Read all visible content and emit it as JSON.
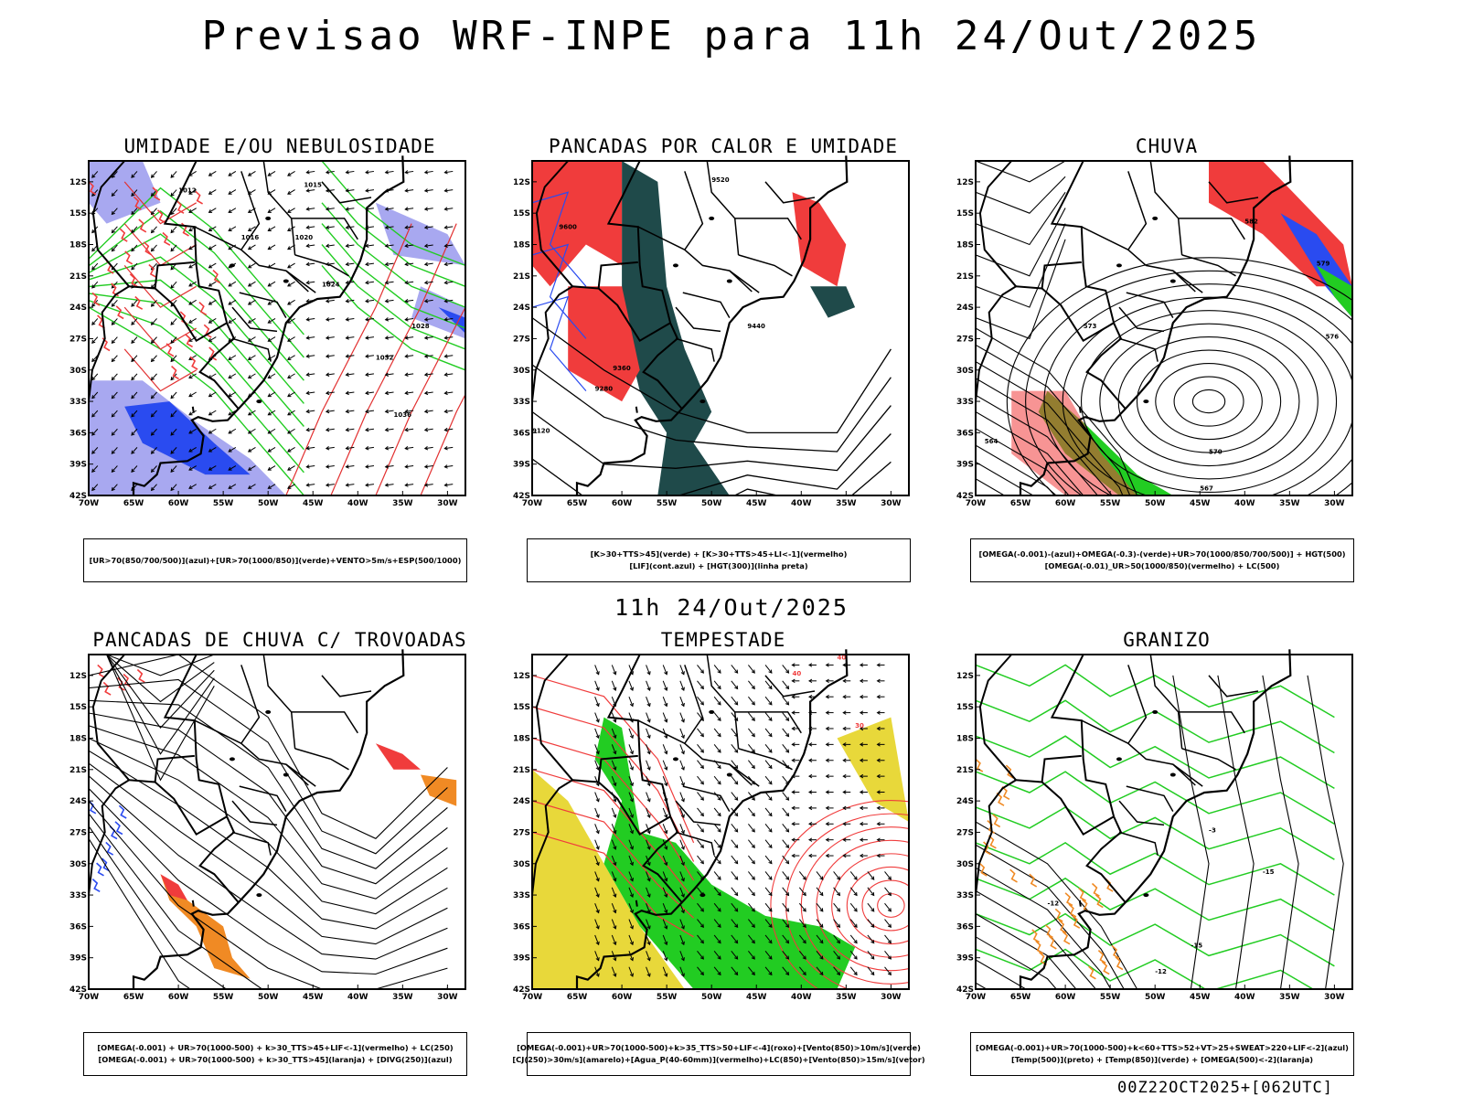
{
  "page": {
    "title": "Previsao WRF-INPE  para 11h 24/Out/2025",
    "middle_title": "11h 24/Out/2025",
    "footer": "00Z22OCT2025+[062UTC]"
  },
  "axes": {
    "lat_labels": [
      "12S",
      "15S",
      "18S",
      "21S",
      "24S",
      "27S",
      "30S",
      "33S",
      "36S",
      "39S",
      "42S"
    ],
    "lon_labels": [
      "70W",
      "65W",
      "60W",
      "55W",
      "50W",
      "45W",
      "40W",
      "35W",
      "30W"
    ]
  },
  "colors": {
    "red": "#f03c3c",
    "green": "#22cc22",
    "blue": "#2a4bf0",
    "lavender": "#a8a8f0",
    "dark_teal": "#1f4a4a",
    "orange": "#f08a24",
    "yellow": "#e8d83a",
    "purple": "#a020f0"
  },
  "panels": [
    {
      "id": "umidade",
      "title": "UMIDADE E/OU NEBULOSIDADE",
      "legend": [
        "[UR>70(850/700/500)](azul)+[UR>70(1000/850)](verde)+VENTO>5m/s+ESP(500/1000)"
      ],
      "contour_labels": [
        "1012",
        "1015",
        "1016",
        "1020",
        "1024",
        "1028",
        "1032",
        "1036"
      ]
    },
    {
      "id": "pancadas-calor",
      "title": "PANCADAS POR CALOR E UMIDADE",
      "legend": [
        "[K>30+TTS>45](verde) + [K>30+TTS>45+LI<-1](vermelho)",
        "[LIF](cont.azul) + [HGT(300)](linha preta)"
      ],
      "contour_labels": [
        "9600",
        "9520",
        "9440",
        "9360",
        "9280",
        "9120"
      ]
    },
    {
      "id": "chuva",
      "title": "CHUVA",
      "legend": [
        "[OMEGA(-0.001)-(azul)+OMEGA(-0.3)-(verde)+UR>70(1000/850/700/500)] + HGT(500)",
        "[OMEGA(-0.01)_UR>50(1000/850)(vermelho) + LC(500)"
      ],
      "contour_labels": [
        "582",
        "579",
        "576",
        "573",
        "570",
        "567",
        "564"
      ]
    },
    {
      "id": "pancadas-trovoadas",
      "title": "PANCADAS DE CHUVA C/ TROVOADAS",
      "legend": [
        "[OMEGA(-0.001) + UR>70(1000-500) + k>30_TTS>45+LIF<-1](vermelho) + LC(250)",
        "[OMEGA(-0.001) + UR>70(1000-500) + k>30_TTS>45](laranja) + [DIVG(250)](azul)"
      ],
      "contour_labels": []
    },
    {
      "id": "tempestade",
      "title": "TEMPESTADE",
      "legend": [
        "[OMEGA(-0.001)+UR>70(1000-500)+k>35_TTS>50+LIF<-4](roxo)+[Vento(850)>10m/s](verde)",
        "[CJ(250)>30m/s](amarelo)+[Agua_P(40-60mm)](vermelho)+LC(850)+[Vento(850)>15m/s](vetor)"
      ],
      "contour_labels": [
        "40",
        "40",
        "30"
      ]
    },
    {
      "id": "granizo",
      "title": "GRANIZO",
      "legend": [
        "[OMEGA(-0.001)+UR>70(1000-500)+k<60+TTS>52+VT>25+SWEAT>220+LIF<-2](azul)",
        "[Temp(500)](preto) + [Temp(850)](verde) + [OMEGA(500)<-2](laranja)"
      ],
      "contour_labels": [
        "-12",
        "-15",
        "-12",
        "-15",
        "-3"
      ]
    }
  ]
}
